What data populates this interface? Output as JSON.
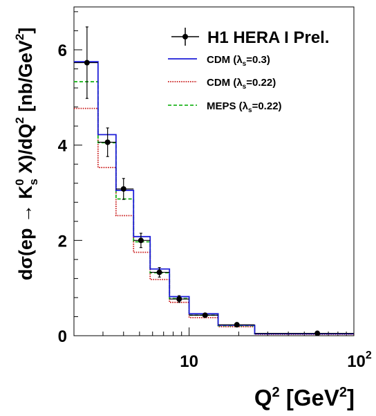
{
  "chart_data": {
    "type": "step-histogram",
    "xscale": "log",
    "xlim": [
      2,
      100
    ],
    "ylim": [
      0,
      6.9
    ],
    "y_ticks": [
      "0",
      "2",
      "4",
      "6"
    ],
    "x_ticks": [
      {
        "value": 10,
        "base": "10",
        "exp": ""
      },
      {
        "value": 100,
        "base": "10",
        "exp": "2"
      }
    ],
    "xlabel": {
      "main": "Q",
      "sup": "2",
      "unit_open": " [GeV",
      "unit_sup": "2",
      "unit_close": "]"
    },
    "ylabel": {
      "p1": "dσ(ep → K",
      "sup0": "0",
      "subs": "s",
      "p2": " X)/dQ",
      "sup2": "2",
      "p3": " [nb/GeV",
      "sup2b": "2",
      "p4": "]"
    },
    "bin_edges": [
      2,
      2.8,
      3.6,
      4.6,
      5.8,
      7.6,
      10,
      15,
      25,
      100
    ],
    "data": {
      "name": "H1 HERA I Prel.",
      "x": [
        2.4,
        3.2,
        4.0,
        5.1,
        6.6,
        8.7,
        12.5,
        19.5,
        60
      ],
      "y": [
        5.73,
        4.06,
        3.08,
        2.0,
        1.33,
        0.77,
        0.43,
        0.23,
        0.05
      ],
      "err": [
        0.75,
        0.3,
        0.22,
        0.15,
        0.1,
        0.07,
        0.04,
        0.03,
        0.01
      ],
      "color": "#000000"
    },
    "series": [
      {
        "name": "CDM",
        "param": "=0.3",
        "style": "solid",
        "color": "#1c1cd8",
        "values": [
          5.75,
          4.22,
          3.05,
          2.08,
          1.4,
          0.82,
          0.46,
          0.22,
          0.04
        ]
      },
      {
        "name": "CDM",
        "param": "=0.22",
        "style": "dotted",
        "color": "#c81414",
        "values": [
          4.77,
          3.53,
          2.52,
          1.75,
          1.18,
          0.7,
          0.38,
          0.19,
          0.03
        ]
      },
      {
        "name": "MEPS",
        "param": "=0.22",
        "style": "dashed",
        "color": "#1fb41f",
        "values": [
          5.33,
          4.05,
          2.87,
          1.97,
          1.32,
          0.78,
          0.43,
          0.21,
          0.04
        ]
      }
    ],
    "legend_lambda": {
      "symbol": "λ",
      "sub": "s"
    },
    "legend_placement": "top-right"
  }
}
